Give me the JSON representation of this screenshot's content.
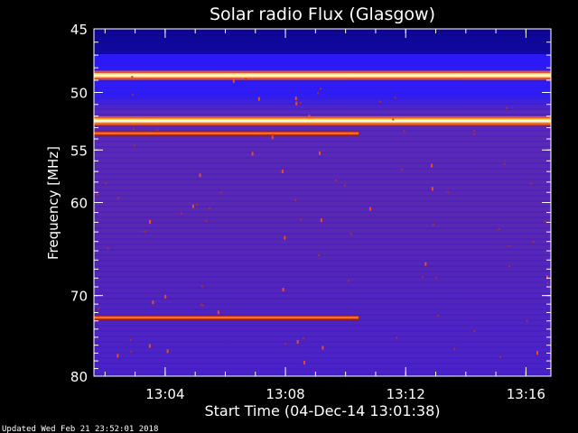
{
  "chart_data": {
    "type": "heatmap",
    "title": "Solar radio Flux (Glasgow)",
    "xlabel": "Start Time (04-Dec-14 13:01:38)",
    "ylabel": "Frequency [MHz]",
    "x_ticks": [
      "13:04",
      "13:08",
      "13:12",
      "13:16"
    ],
    "x_tick_minutes": [
      2.37,
      6.37,
      10.37,
      14.37
    ],
    "xlim_minutes": [
      0,
      15.2
    ],
    "y_ticks": [
      45,
      50,
      55,
      60,
      70,
      80
    ],
    "ylim": [
      45,
      80
    ],
    "y_scale": "log",
    "colormap": [
      "#000000",
      "#1a0fc8",
      "#2a18ff",
      "#6a2ad0",
      "#7a3aa0",
      "#c83a1a",
      "#ff6010",
      "#ffd040",
      "#ffffff"
    ],
    "background_color": "#5a2ab4",
    "bands": [
      {
        "freq": 48.6,
        "level": "high",
        "from_min": 0,
        "to_min": 15.2
      },
      {
        "freq": 52.4,
        "level": "high",
        "from_min": 0,
        "to_min": 15.2
      },
      {
        "freq": 53.5,
        "level": "medium",
        "from_min": 0,
        "to_min": 8.8
      },
      {
        "freq": 72.6,
        "level": "medium",
        "from_min": 0,
        "to_min": 8.8
      }
    ]
  },
  "footer": {
    "updated": "Updated Wed Feb 21 23:52:01 2018"
  }
}
